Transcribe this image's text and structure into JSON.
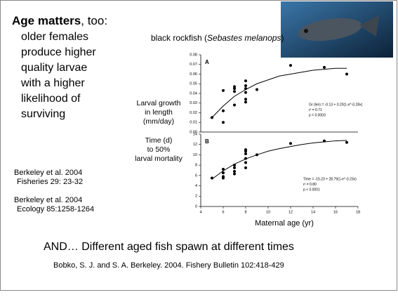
{
  "slide": {
    "heading_bold": "Age matters",
    "heading_rest": ", too:",
    "lines": [
      "older females",
      "produce higher",
      "quality larvae",
      "with a higher",
      "likelihood of",
      "surviving"
    ],
    "citations": [
      [
        "Berkeley et al. 2004",
        "Fisheries 29: 23-32"
      ],
      [
        "Berkeley et al. 2004",
        "Ecology 85:1258-1264"
      ]
    ],
    "caption": [
      "black rockfish (",
      "Sebastes melanops",
      ")"
    ],
    "statement": "AND…  Different aged fish spawn at different times",
    "reference": "Bobko, S. J. and S. A. Berkeley. 2004. Fishery Bulletin 102:418-429"
  },
  "chart_data": [
    {
      "type": "scatter",
      "panel": "A",
      "ylabel": [
        "Larval growth",
        "in length",
        "(mm/day)"
      ],
      "annotations": [
        "Gr (len) = -0.13 + 0.20(1-e^-0.28x)",
        "r² = 0.71",
        "p = 0.0003"
      ],
      "x": [
        5,
        6,
        6,
        6,
        7,
        7,
        7,
        7,
        8,
        8,
        8,
        8,
        8,
        8,
        9,
        12,
        15,
        17
      ],
      "values": [
        0.015,
        0.043,
        0.022,
        0.01,
        0.045,
        0.047,
        0.042,
        0.028,
        0.053,
        0.048,
        0.045,
        0.041,
        0.034,
        0.031,
        0.044,
        0.069,
        0.067,
        0.06
      ],
      "fit": {
        "x": [
          5,
          6,
          7,
          8,
          9,
          10,
          11,
          12,
          13,
          14,
          15,
          16,
          17
        ],
        "values": [
          0.015,
          0.027,
          0.037,
          0.044,
          0.05,
          0.054,
          0.058,
          0.06,
          0.062,
          0.064,
          0.065,
          0.066,
          0.066
        ]
      },
      "color": "#000000",
      "xlim": [
        4,
        18
      ],
      "ylim": [
        0,
        0.08
      ],
      "yticks": [
        {
          "value": 0,
          "label": "0.00"
        },
        0.01,
        0.02,
        0.03,
        0.04,
        0.05,
        0.06,
        0.07,
        0.08
      ]
    },
    {
      "type": "scatter",
      "panel": "B",
      "ylabel": [
        "Time (d)",
        "to 50%",
        "larval mortality"
      ],
      "xlabel": "Maternal  age (yr)",
      "annotations": [
        "Time = -15.23 + 28.79(1-e^-0.23x)",
        "r² = 0.80",
        "p < 0.0001"
      ],
      "x": [
        5,
        6,
        6,
        6,
        6,
        7,
        7,
        7,
        7,
        8,
        8,
        8,
        8,
        8,
        8,
        9,
        12,
        15,
        17
      ],
      "values": [
        5.5,
        5.8,
        6.5,
        7.2,
        5.5,
        6.3,
        6.8,
        7.5,
        8,
        8.5,
        9.3,
        10.2,
        10.7,
        11,
        7.5,
        10,
        12.2,
        12.7,
        12.4
      ],
      "fit": {
        "x": [
          5,
          6,
          7,
          8,
          9,
          10,
          11,
          12,
          13,
          14,
          15,
          16,
          17
        ],
        "values": [
          5.3,
          6.9,
          8.2,
          9.2,
          10,
          10.7,
          11.2,
          11.6,
          12,
          12.3,
          12.5,
          12.7,
          12.8
        ]
      },
      "color": "#000000",
      "xlim": [
        4,
        18
      ],
      "ylim": [
        0,
        14
      ],
      "xticks": [
        4,
        6,
        8,
        10,
        12,
        14,
        16,
        18
      ],
      "yticks": [
        0,
        2,
        4,
        6,
        8,
        10,
        12,
        14
      ]
    }
  ]
}
